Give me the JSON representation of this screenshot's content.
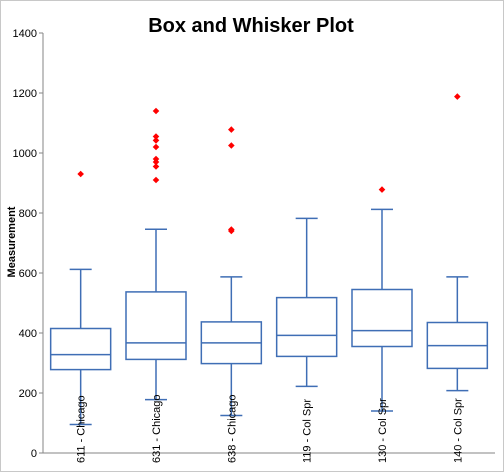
{
  "chart_data": {
    "type": "box",
    "title": "Box and Whisker Plot",
    "xlabel": "",
    "ylabel": "Measurement",
    "ylim": [
      0,
      1400
    ],
    "ytick_step": 200,
    "grid": false,
    "legend": "none",
    "categories": [
      "611 - Chicago",
      "631 - Chicago",
      "638 - Chicago",
      "119 - Col Spr",
      "130 - Col Spr",
      "140 - Col Spr"
    ],
    "boxes": [
      {
        "min": 95,
        "q1": 278,
        "median": 328,
        "q3": 415,
        "max": 612,
        "outliers": [
          930
        ]
      },
      {
        "min": 178,
        "q1": 312,
        "median": 367,
        "q3": 537,
        "max": 746,
        "outliers": [
          910,
          955,
          970,
          980,
          1020,
          1042,
          1055,
          1140
        ]
      },
      {
        "min": 125,
        "q1": 298,
        "median": 367,
        "q3": 437,
        "max": 587,
        "outliers": [
          740,
          745,
          1025,
          1078
        ]
      },
      {
        "min": 222,
        "q1": 322,
        "median": 392,
        "q3": 518,
        "max": 782,
        "outliers": []
      },
      {
        "min": 140,
        "q1": 355,
        "median": 408,
        "q3": 545,
        "max": 812,
        "outliers": [
          878
        ]
      },
      {
        "min": 208,
        "q1": 282,
        "median": 358,
        "q3": 435,
        "max": 587,
        "outliers": [
          1188
        ]
      }
    ],
    "colors": {
      "box": "#3f6eb5",
      "outlier": "#ff0000",
      "axis": "#868686"
    }
  }
}
